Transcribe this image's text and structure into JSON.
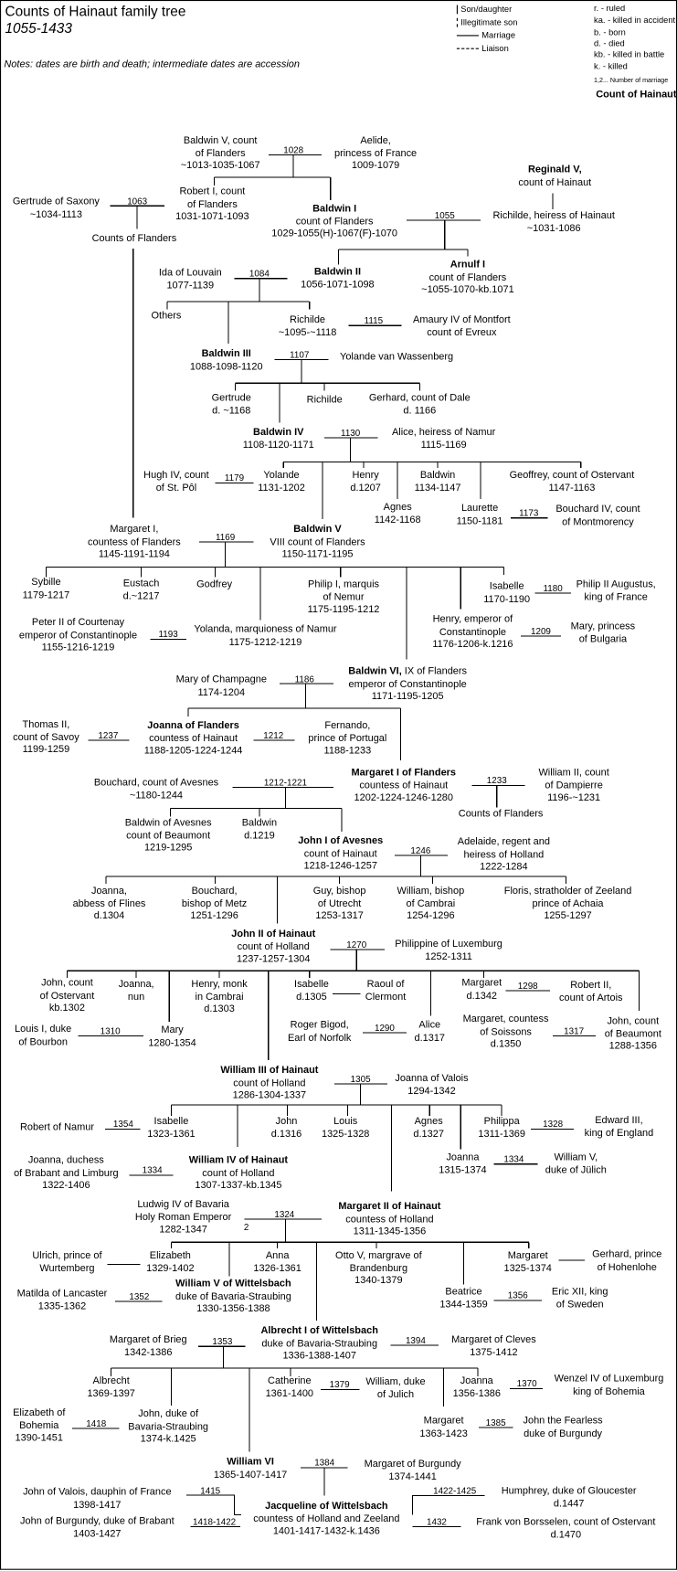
{
  "header": {
    "title": "Counts of Hainaut family tree",
    "subtitle": "1055-1433",
    "notes": "Notes: dates are birth and death; intermediate dates are accession"
  },
  "legend": {
    "son_daughter": "Son/daughter",
    "illegitimate_son": "Illegitimate son",
    "marriage": "Marriage",
    "liaison": "Liaison",
    "abbreviations": [
      "r. - ruled",
      "ka. - killed in accident",
      "b. - born",
      "d. - died",
      "kb. - killed in battle",
      "k. - killed"
    ],
    "marriage_number_note": "1,2... Number of marriage",
    "count_label": "Count of Hainaut"
  },
  "people": [
    {
      "lines": [
        "Baldwin V, count",
        "of Flanders",
        "~1013-1035-1067"
      ]
    },
    {
      "lines": [
        "Aelide,",
        "princess of France",
        "1009-1079"
      ]
    },
    {
      "name": "Reginald V,",
      "lines": [
        "count of Hainaut"
      ]
    },
    {
      "lines": [
        "Richilde, heiress of Hainaut",
        "~1031-1086"
      ]
    },
    {
      "lines": [
        "Robert I, count",
        "of Flanders",
        "1031-1071-1093"
      ]
    },
    {
      "lines": [
        "Gertrude of Saxony",
        "~1034-1113"
      ]
    },
    {
      "lines": [
        "Counts of Flanders"
      ]
    },
    {
      "name": "Baldwin I",
      "lines": [
        "count of Flanders",
        "1029-1055(H)-1067(F)-1070"
      ]
    },
    {
      "lines": [
        "Ida of Louvain",
        "1077-1139"
      ]
    },
    {
      "name": "Baldwin II",
      "lines": [
        "1056-1071-1098"
      ]
    },
    {
      "name": "Arnulf I",
      "lines": [
        "count of Flanders",
        "~1055-1070-kb.1071"
      ]
    },
    {
      "lines": [
        "Others"
      ]
    },
    {
      "lines": [
        "Richilde",
        "~1095-~1118"
      ]
    },
    {
      "lines": [
        "Amaury IV of Montfort",
        "count of Evreux"
      ]
    },
    {
      "name": "Baldwin III",
      "lines": [
        "1088-1098-1120"
      ]
    },
    {
      "lines": [
        "Yolande van Wassenberg"
      ]
    },
    {
      "lines": [
        "Gertrude",
        "d. ~1168"
      ]
    },
    {
      "lines": [
        "Richilde"
      ]
    },
    {
      "lines": [
        "Gerhard, count of Dale",
        "d. 1166"
      ]
    },
    {
      "name": "Baldwin IV",
      "lines": [
        "1108-1120-1171"
      ]
    },
    {
      "lines": [
        "Alice, heiress of Namur",
        "1115-1169"
      ]
    },
    {
      "lines": [
        "Hugh IV, count",
        "of St. Pôl"
      ]
    },
    {
      "lines": [
        "Yolande",
        "1131-1202"
      ]
    },
    {
      "lines": [
        "Henry",
        "d.1207"
      ]
    },
    {
      "lines": [
        "Baldwin",
        "1134-1147"
      ]
    },
    {
      "lines": [
        "Geoffrey, count of Ostervant",
        "1147-1163"
      ]
    },
    {
      "lines": [
        "Agnes",
        "1142-1168"
      ]
    },
    {
      "lines": [
        "Laurette",
        "1150-1181"
      ]
    },
    {
      "lines": [
        "Bouchard IV, count",
        "of Montmorency"
      ]
    },
    {
      "lines": [
        "Margaret I,",
        "countess of Flanders",
        "1145-1191-1194"
      ]
    },
    {
      "name": "Baldwin V",
      "lines": [
        "VIII count of Flanders",
        "1150-1171-1195"
      ]
    },
    {
      "lines": [
        "Sybille",
        "1179-1217"
      ]
    },
    {
      "lines": [
        "Eustach",
        "d.~1217"
      ]
    },
    {
      "lines": [
        "Godfrey"
      ]
    },
    {
      "lines": [
        "Philip I, marquis",
        "of Nemur",
        "1175-1195-1212"
      ]
    },
    {
      "lines": [
        "Isabelle",
        "1170-1190"
      ]
    },
    {
      "lines": [
        "Philip II Augustus,",
        "king of France"
      ]
    },
    {
      "lines": [
        "Peter II of Courtenay",
        "emperor of Constantinople",
        "1155-1216-1219"
      ]
    },
    {
      "lines": [
        "Yolanda, marquioness of Namur",
        "1175-1212-1219"
      ]
    },
    {
      "lines": [
        "Henry, emperor of",
        "Constantinople",
        "1176-1206-k.1216"
      ]
    },
    {
      "lines": [
        "Mary, princess",
        "of Bulgaria"
      ]
    },
    {
      "lines": [
        "Mary of Champagne",
        "1174-1204"
      ]
    },
    {
      "name": "Baldwin VI,",
      "name_suffix": " IX of Flanders",
      "lines": [
        "emperor of Constantinople",
        "1171-1195-1205"
      ]
    },
    {
      "lines": [
        "Thomas II,",
        "count of Savoy",
        "1199-1259"
      ]
    },
    {
      "name": "Joanna of Flanders",
      "lines": [
        "countess of Hainaut",
        "1188-1205-1224-1244"
      ]
    },
    {
      "lines": [
        "Fernando,",
        "prince of Portugal",
        "1188-1233"
      ]
    },
    {
      "lines": [
        "Bouchard, count of Avesnes",
        "~1180-1244"
      ]
    },
    {
      "name": "Margaret I of Flanders",
      "lines": [
        "countess of Hainaut",
        "1202-1224-1246-1280"
      ]
    },
    {
      "lines": [
        "William II, count",
        "of Dampierre",
        "1196-~1231"
      ]
    },
    {
      "lines": [
        "Counts of Flanders"
      ]
    },
    {
      "lines": [
        "Baldwin of Avesnes",
        "count of Beaumont",
        "1219-1295"
      ]
    },
    {
      "lines": [
        "Baldwin",
        "d.1219"
      ]
    },
    {
      "name": "John I of Avesnes",
      "lines": [
        "count of Hainaut",
        "1218-1246-1257"
      ]
    },
    {
      "lines": [
        "Adelaide, regent and",
        "heiress of Holland",
        "1222-1284"
      ]
    },
    {
      "lines": [
        "Joanna,",
        "abbess of Flines",
        "d.1304"
      ]
    },
    {
      "lines": [
        "Bouchard,",
        "bishop of Metz",
        "1251-1296"
      ]
    },
    {
      "lines": [
        "Guy, bishop",
        "of Utrecht",
        "1253-1317"
      ]
    },
    {
      "lines": [
        "William, bishop",
        "of Cambrai",
        "1254-1296"
      ]
    },
    {
      "lines": [
        "Floris, stratholder of Zeeland",
        "prince of Achaia",
        "1255-1297"
      ]
    },
    {
      "name": "John II of Hainaut",
      "lines": [
        "count of Holland",
        "1237-1257-1304"
      ]
    },
    {
      "lines": [
        "Philippine of Luxemburg",
        "1252-1311"
      ]
    },
    {
      "lines": [
        "John, count",
        "of Ostervant",
        "kb.1302"
      ]
    },
    {
      "lines": [
        "Joanna,",
        "nun"
      ]
    },
    {
      "lines": [
        "Henry, monk",
        "in Cambrai",
        "d.1303"
      ]
    },
    {
      "lines": [
        "Isabelle",
        "d.1305"
      ]
    },
    {
      "lines": [
        "Raoul of",
        "Clermont"
      ]
    },
    {
      "lines": [
        "Margaret",
        "d.1342"
      ]
    },
    {
      "lines": [
        "Robert II,",
        "count of Artois"
      ]
    },
    {
      "lines": [
        "Louis I, duke",
        "of Bourbon"
      ]
    },
    {
      "lines": [
        "Mary",
        "1280-1354"
      ]
    },
    {
      "lines": [
        "Roger Bigod,",
        "Earl of Norfolk"
      ]
    },
    {
      "lines": [
        "Alice",
        "d.1317"
      ]
    },
    {
      "lines": [
        "Margaret, countess",
        "of Soissons",
        "d.1350"
      ]
    },
    {
      "lines": [
        "John, count",
        "of Beaumont",
        "1288-1356"
      ]
    },
    {
      "name": "William III of Hainaut",
      "lines": [
        "count of Holland",
        "1286-1304-1337"
      ]
    },
    {
      "lines": [
        "Joanna of Valois",
        "1294-1342"
      ]
    },
    {
      "lines": [
        "Robert of Namur"
      ]
    },
    {
      "lines": [
        "Isabelle",
        "1323-1361"
      ]
    },
    {
      "lines": [
        "John",
        "d.1316"
      ]
    },
    {
      "lines": [
        "Louis",
        "1325-1328"
      ]
    },
    {
      "lines": [
        "Agnes",
        "d.1327"
      ]
    },
    {
      "lines": [
        "Philippa",
        "1311-1369"
      ]
    },
    {
      "lines": [
        "Edward III,",
        "king of England"
      ]
    },
    {
      "lines": [
        "Joanna, duchess",
        "of Brabant and Limburg",
        "1322-1406"
      ]
    },
    {
      "name": "William IV of Hainaut",
      "lines": [
        "count of Holland",
        "1307-1337-kb.1345"
      ]
    },
    {
      "lines": [
        "Joanna",
        "1315-1374"
      ]
    },
    {
      "lines": [
        "William V,",
        "duke of Jülich"
      ]
    },
    {
      "lines": [
        "Ludwig IV of Bavaria",
        "Holy Roman Emperor",
        "1282-1347"
      ]
    },
    {
      "name": "Margaret II of Hainaut",
      "lines": [
        "countess of Holland",
        "1311-1345-1356"
      ]
    },
    {
      "lines": [
        "Ulrich, prince of",
        "Wurtemberg"
      ]
    },
    {
      "lines": [
        "Elizabeth",
        "1329-1402"
      ]
    },
    {
      "lines": [
        "Anna",
        "1326-1361"
      ]
    },
    {
      "lines": [
        "Otto V, margrave of",
        "Brandenburg",
        "1340-1379"
      ]
    },
    {
      "lines": [
        "Margaret",
        "1325-1374"
      ]
    },
    {
      "lines": [
        "Gerhard, prince",
        "of Hohenlohe"
      ]
    },
    {
      "name": "William V of Wittelsbach",
      "lines": [
        "duke of Bavaria-Straubing",
        "1330-1356-1388"
      ]
    },
    {
      "lines": [
        "Matilda of Lancaster",
        "1335-1362"
      ]
    },
    {
      "lines": [
        "Beatrice",
        "1344-1359"
      ]
    },
    {
      "lines": [
        "Eric XII, king",
        "of Sweden"
      ]
    },
    {
      "name": "Albrecht I of Wittelsbach",
      "lines": [
        "duke of Bavaria-Straubing",
        "1336-1388-1407"
      ]
    },
    {
      "lines": [
        "Margaret of Brieg",
        "1342-1386"
      ]
    },
    {
      "lines": [
        "Margaret of Cleves",
        "1375-1412"
      ]
    },
    {
      "lines": [
        "Albrecht",
        "1369-1397"
      ]
    },
    {
      "lines": [
        "Catherine",
        "1361-1400"
      ]
    },
    {
      "lines": [
        "William, duke",
        "of Julich"
      ]
    },
    {
      "lines": [
        "Joanna",
        "1356-1386"
      ]
    },
    {
      "lines": [
        "Wenzel IV of Luxemburg",
        "king of Bohemia"
      ]
    },
    {
      "lines": [
        "Elizabeth of",
        "Bohemia",
        "1390-1451"
      ]
    },
    {
      "lines": [
        "John, duke of",
        "Bavaria-Straubing",
        "1374-k.1425"
      ]
    },
    {
      "lines": [
        "Margaret",
        "1363-1423"
      ]
    },
    {
      "lines": [
        "John the Fearless",
        "duke of Burgundy"
      ]
    },
    {
      "name": "William VI",
      "lines": [
        "1365-1407-1417"
      ]
    },
    {
      "lines": [
        "Margaret of Burgundy",
        "1374-1441"
      ]
    },
    {
      "lines": [
        "John of Valois, dauphin of France",
        "1398-1417"
      ]
    },
    {
      "name": "Jacqueline of Wittelsbach",
      "lines": [
        "countess of Holland and Zeeland",
        "1401-1417-1432-k.1436"
      ]
    },
    {
      "lines": [
        "John of Burgundy, duke of Brabant",
        "1403-1427"
      ]
    },
    {
      "lines": [
        "Humphrey, duke of Gloucester",
        "d.1447"
      ]
    },
    {
      "lines": [
        "Frank von Borsselen, count of Ostervant",
        "d.1470"
      ]
    }
  ],
  "marriages": [
    "1028",
    "1063",
    "1055",
    "1084",
    "1115",
    "1107",
    "1130",
    "1179",
    "1173",
    "1169",
    "1180",
    "1193",
    "1209",
    "1186",
    "1237",
    "1212",
    "1212-1221",
    "1233",
    "1246",
    "1270",
    "",
    "1298",
    "1310",
    "1290",
    "1317",
    "1305",
    "1354",
    "1328",
    "1334",
    "1334",
    "1324",
    "",
    "",
    "1352",
    "1356",
    "1353",
    "1394",
    "1379",
    "1370",
    "1418",
    "1385",
    "1384",
    "1415",
    "1418-1422",
    "1422-1425",
    "1432"
  ],
  "marriage_number": "2"
}
